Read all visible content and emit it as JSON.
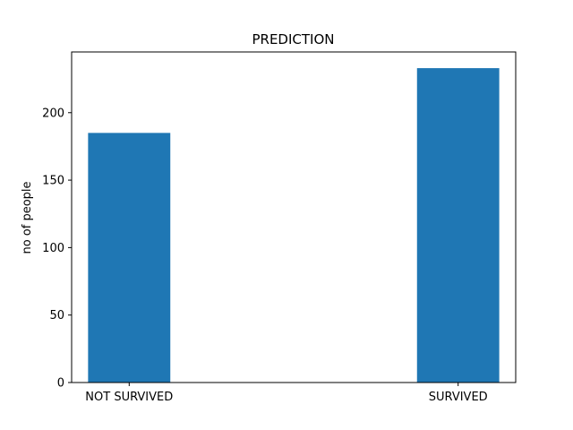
{
  "chart_data": {
    "type": "bar",
    "title": "PREDICTION",
    "xlabel": "",
    "ylabel": "no of people",
    "categories": [
      "NOT SURVIVED",
      "SURVIVED"
    ],
    "values": [
      185,
      233
    ],
    "ylim": [
      0,
      245
    ],
    "yticks": [
      0,
      50,
      100,
      150,
      200
    ],
    "bar_color": "#1f77b4",
    "grid": false,
    "legend": "none"
  }
}
